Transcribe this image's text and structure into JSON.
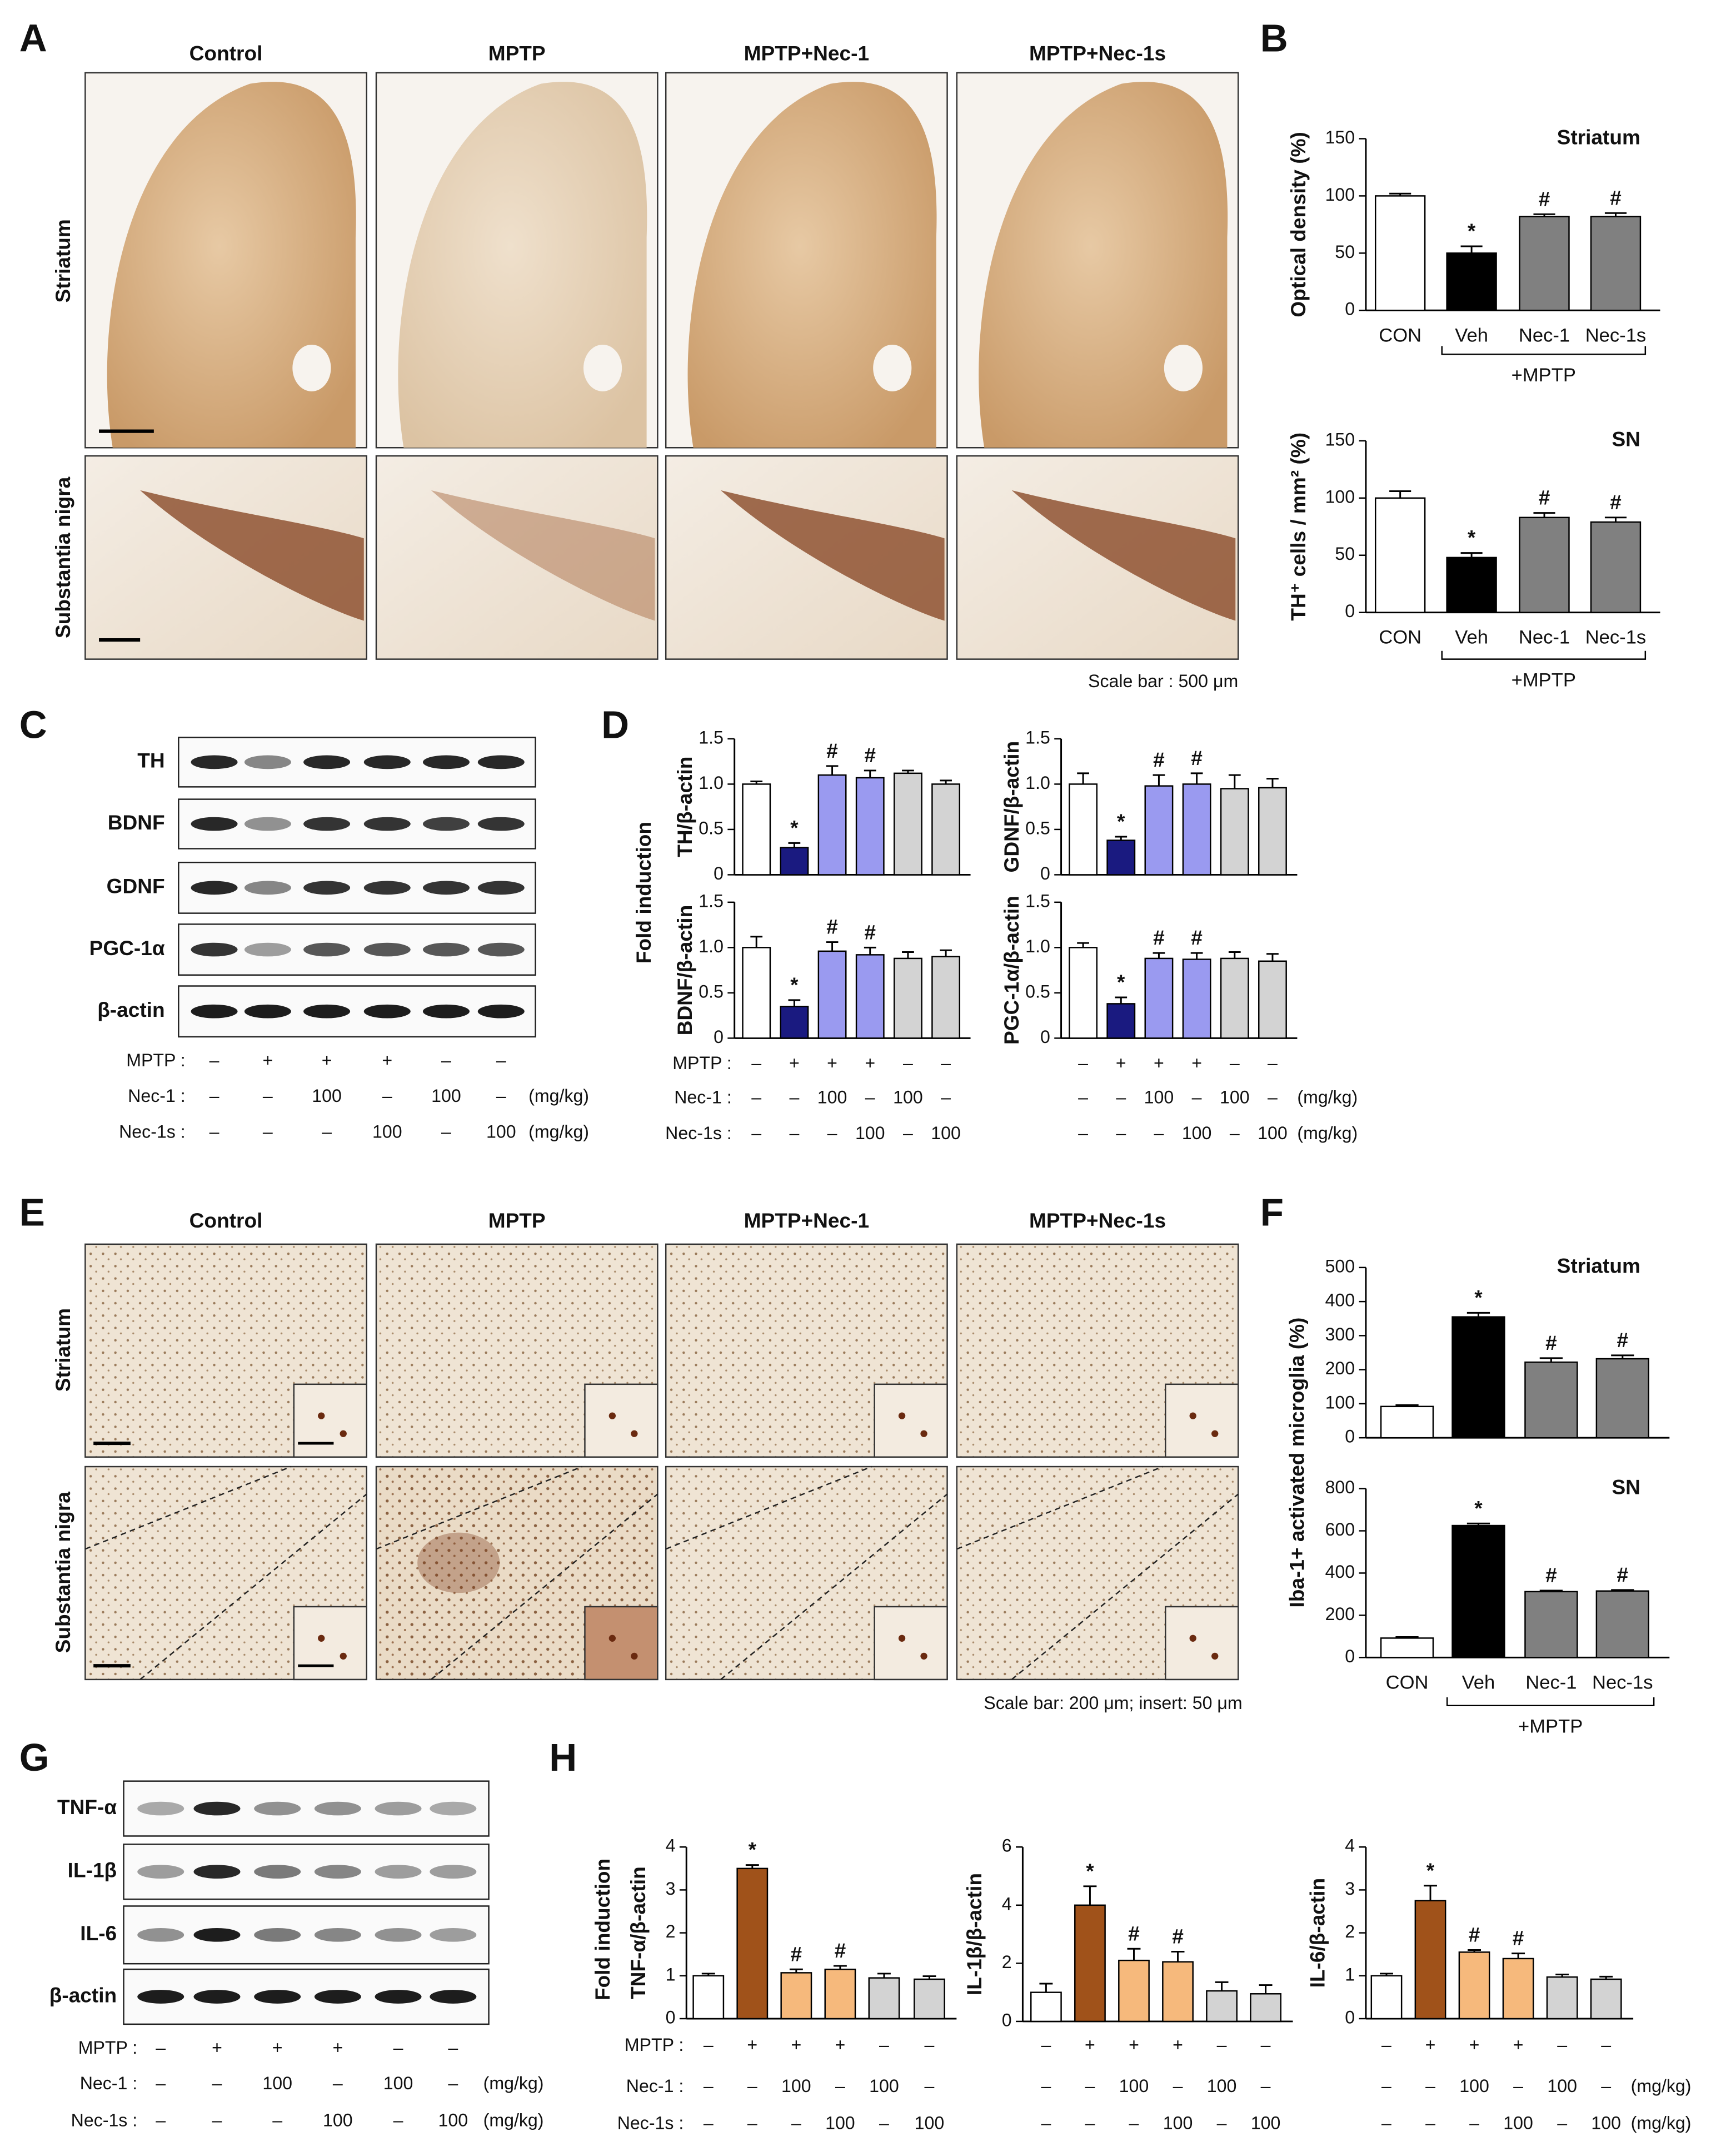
{
  "panels": {
    "A": {
      "letter": "A",
      "columns": [
        "Control",
        "MPTP",
        "MPTP+Nec-1",
        "MPTP+Nec-1s"
      ],
      "rows": [
        "Striatum",
        "Substantia nigra"
      ],
      "scale_bar": "Scale bar : 500 μm"
    },
    "B": {
      "letter": "B"
    },
    "C": {
      "letter": "C",
      "blots": [
        "TH",
        "BDNF",
        "GDNF",
        "PGC-1α",
        "β-actin"
      ]
    },
    "D": {
      "letter": "D",
      "ylabel": "Fold induction"
    },
    "E": {
      "letter": "E",
      "columns": [
        "Control",
        "MPTP",
        "MPTP+Nec-1",
        "MPTP+Nec-1s"
      ],
      "rows": [
        "Striatum",
        "Substantia nigra"
      ],
      "scale_bar": "Scale bar: 200 μm; insert: 50 μm"
    },
    "F": {
      "letter": "F",
      "ylabel": "Iba-1+ activated microglia (%)"
    },
    "G": {
      "letter": "G",
      "blots": [
        "TNF-α",
        "IL-1β",
        "IL-6",
        "β-actin"
      ]
    },
    "H": {
      "letter": "H",
      "ylabel": "Fold induction"
    }
  },
  "treatments": [
    {
      "label": "MPTP :",
      "cells": [
        "–",
        "+",
        "+",
        "+",
        "–",
        "–"
      ]
    },
    {
      "label": "Nec-1 :",
      "cells": [
        "–",
        "–",
        "100",
        "–",
        "100",
        "–"
      ],
      "unit": "(mg/kg)"
    },
    {
      "label": "Nec-1s :",
      "cells": [
        "–",
        "–",
        "–",
        "100",
        "–",
        "100"
      ],
      "unit": "(mg/kg)"
    }
  ],
  "chart_data": [
    {
      "type": "bar",
      "title": "Striatum",
      "ylabel": "Optical density (%)",
      "categories": [
        "CON",
        "Veh",
        "Nec-1",
        "Nec-1s"
      ],
      "group_label": "+MPTP",
      "values": [
        100,
        50,
        82,
        82
      ],
      "errors": [
        2,
        6,
        2,
        3
      ],
      "annotations": [
        null,
        "*",
        "#",
        "#"
      ],
      "colors": [
        "#ffffff",
        "#000000",
        "#808080",
        "#808080"
      ],
      "ylim": [
        0,
        150
      ],
      "yticks": [
        0,
        50,
        100,
        150
      ]
    },
    {
      "type": "bar",
      "title": "SN",
      "ylabel": "TH⁺ cells / mm² (%)",
      "categories": [
        "CON",
        "Veh",
        "Nec-1",
        "Nec-1s"
      ],
      "group_label": "+MPTP",
      "values": [
        100,
        48,
        83,
        79
      ],
      "errors": [
        6,
        4,
        4,
        4
      ],
      "annotations": [
        null,
        "*",
        "#",
        "#"
      ],
      "colors": [
        "#ffffff",
        "#000000",
        "#808080",
        "#808080"
      ],
      "ylim": [
        0,
        150
      ],
      "yticks": [
        0,
        50,
        100,
        150
      ]
    },
    {
      "type": "bar",
      "ylabel": "TH/β-actin",
      "categories": [
        null,
        null,
        null,
        null,
        null,
        null
      ],
      "values": [
        1.0,
        0.3,
        1.1,
        1.07,
        1.12,
        1.0
      ],
      "errors": [
        0.03,
        0.05,
        0.1,
        0.08,
        0.03,
        0.04
      ],
      "annotations": [
        null,
        "*",
        "#",
        "#",
        null,
        null
      ],
      "colors": [
        "#ffffff",
        "#1a1a80",
        "#9a9af0",
        "#9a9af0",
        "#d3d3d3",
        "#d3d3d3"
      ],
      "ylim": [
        0,
        1.5
      ],
      "yticks": [
        0,
        0.5,
        {
          "value": 1,
          "label": "1.0"
        },
        1.5
      ]
    },
    {
      "type": "bar",
      "ylabel": "GDNF/β-actin",
      "categories": [
        null,
        null,
        null,
        null,
        null,
        null
      ],
      "values": [
        1.0,
        0.38,
        0.98,
        1.0,
        0.95,
        0.96
      ],
      "errors": [
        0.12,
        0.04,
        0.12,
        0.12,
        0.15,
        0.1
      ],
      "annotations": [
        null,
        "*",
        "#",
        "#",
        null,
        null
      ],
      "colors": [
        "#ffffff",
        "#1a1a80",
        "#9a9af0",
        "#9a9af0",
        "#d3d3d3",
        "#d3d3d3"
      ],
      "ylim": [
        0,
        1.5
      ],
      "yticks": [
        0,
        0.5,
        {
          "value": 1,
          "label": "1.0"
        },
        1.5
      ]
    },
    {
      "type": "bar",
      "ylabel": "BDNF/β-actin",
      "categories": [
        null,
        null,
        null,
        null,
        null,
        null
      ],
      "values": [
        1.0,
        0.35,
        0.96,
        0.92,
        0.88,
        0.9
      ],
      "errors": [
        0.12,
        0.07,
        0.1,
        0.08,
        0.07,
        0.07
      ],
      "annotations": [
        null,
        "*",
        "#",
        "#",
        null,
        null
      ],
      "colors": [
        "#ffffff",
        "#1a1a80",
        "#9a9af0",
        "#9a9af0",
        "#d3d3d3",
        "#d3d3d3"
      ],
      "ylim": [
        0,
        1.5
      ],
      "yticks": [
        0,
        0.5,
        {
          "value": 1,
          "label": "1.0"
        },
        1.5
      ]
    },
    {
      "type": "bar",
      "ylabel": "PGC-1α/β-actin",
      "categories": [
        null,
        null,
        null,
        null,
        null,
        null
      ],
      "values": [
        1.0,
        0.38,
        0.88,
        0.87,
        0.88,
        0.85
      ],
      "errors": [
        0.05,
        0.07,
        0.06,
        0.07,
        0.07,
        0.08
      ],
      "annotations": [
        null,
        "*",
        "#",
        "#",
        null,
        null
      ],
      "colors": [
        "#ffffff",
        "#1a1a80",
        "#9a9af0",
        "#9a9af0",
        "#d3d3d3",
        "#d3d3d3"
      ],
      "ylim": [
        0,
        1.5
      ],
      "yticks": [
        0,
        0.5,
        {
          "value": 1,
          "label": "1.0"
        },
        1.5
      ]
    },
    {
      "type": "bar",
      "title": "Striatum",
      "categories": [
        null,
        null,
        null,
        null
      ],
      "values": [
        92,
        355,
        222,
        232
      ],
      "errors": [
        4,
        12,
        12,
        10
      ],
      "annotations": [
        null,
        "*",
        "#",
        "#"
      ],
      "colors": [
        "#ffffff",
        "#000000",
        "#808080",
        "#808080"
      ],
      "ylim": [
        0,
        500
      ],
      "yticks": [
        0,
        100,
        200,
        300,
        400,
        500
      ]
    },
    {
      "type": "bar",
      "title": "SN",
      "categories": [
        "CON",
        "Veh",
        "Nec-1",
        "Nec-1s"
      ],
      "group_label": "+MPTP",
      "values": [
        92,
        625,
        312,
        315
      ],
      "errors": [
        5,
        10,
        5,
        5
      ],
      "annotations": [
        null,
        "*",
        "#",
        "#"
      ],
      "colors": [
        "#ffffff",
        "#000000",
        "#808080",
        "#808080"
      ],
      "ylim": [
        0,
        800
      ],
      "yticks": [
        0,
        200,
        400,
        600,
        800
      ]
    },
    {
      "type": "bar",
      "ylabel": "TNF-α/β-actin",
      "categories": [
        null,
        null,
        null,
        null,
        null,
        null
      ],
      "values": [
        1.0,
        3.5,
        1.07,
        1.15,
        0.95,
        0.92
      ],
      "errors": [
        0.05,
        0.08,
        0.08,
        0.08,
        0.1,
        0.07
      ],
      "annotations": [
        null,
        "*",
        "#",
        "#",
        null,
        null
      ],
      "colors": [
        "#ffffff",
        "#a0521a",
        "#f6b97c",
        "#f6b97c",
        "#d3d3d3",
        "#d3d3d3"
      ],
      "ylim": [
        0,
        4
      ],
      "yticks": [
        0,
        1,
        2,
        3,
        4
      ]
    },
    {
      "type": "bar",
      "ylabel": "IL-1β/β-actin",
      "categories": [
        null,
        null,
        null,
        null,
        null,
        null
      ],
      "values": [
        1.0,
        4.0,
        2.1,
        2.05,
        1.05,
        0.95
      ],
      "errors": [
        0.3,
        0.65,
        0.4,
        0.35,
        0.3,
        0.3
      ],
      "annotations": [
        null,
        "*",
        "#",
        "#",
        null,
        null
      ],
      "colors": [
        "#ffffff",
        "#a0521a",
        "#f6b97c",
        "#f6b97c",
        "#d3d3d3",
        "#d3d3d3"
      ],
      "ylim": [
        0,
        6
      ],
      "yticks": [
        0,
        2,
        4,
        6
      ]
    },
    {
      "type": "bar",
      "ylabel": "IL-6/β-actin",
      "categories": [
        null,
        null,
        null,
        null,
        null,
        null
      ],
      "values": [
        1.0,
        2.75,
        1.55,
        1.4,
        0.97,
        0.92
      ],
      "errors": [
        0.05,
        0.35,
        0.05,
        0.12,
        0.06,
        0.06
      ],
      "annotations": [
        null,
        "*",
        "#",
        "#",
        null,
        null
      ],
      "colors": [
        "#ffffff",
        "#a0521a",
        "#f6b97c",
        "#f6b97c",
        "#d3d3d3",
        "#d3d3d3"
      ],
      "ylim": [
        0,
        4
      ],
      "yticks": [
        0,
        1,
        2,
        3,
        4
      ]
    }
  ]
}
